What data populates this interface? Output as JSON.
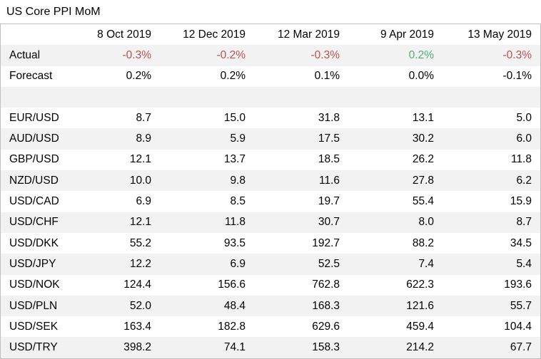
{
  "title": "US Core PPI MoM",
  "dates": [
    "8 Oct 2019",
    "12 Dec 2019",
    "12 Mar 2019",
    "9 Apr 2019",
    "13 May 2019"
  ],
  "actual": {
    "label": "Actual",
    "values": [
      "-0.3%",
      "-0.2%",
      "-0.3%",
      "0.2%",
      "-0.3%"
    ],
    "colors": [
      "neg",
      "neg",
      "neg",
      "pos",
      "neg"
    ]
  },
  "forecast": {
    "label": "Forecast",
    "values": [
      "0.2%",
      "0.2%",
      "0.1%",
      "0.0%",
      "-0.1%"
    ]
  },
  "pairs": [
    {
      "name": "EUR/USD",
      "values": [
        "8.7",
        "15.0",
        "31.8",
        "13.1",
        "5.0"
      ]
    },
    {
      "name": "AUD/USD",
      "values": [
        "8.9",
        "5.9",
        "17.5",
        "30.2",
        "6.0"
      ]
    },
    {
      "name": "GBP/USD",
      "values": [
        "12.1",
        "13.7",
        "18.5",
        "26.2",
        "11.8"
      ]
    },
    {
      "name": "NZD/USD",
      "values": [
        "10.0",
        "9.8",
        "11.6",
        "27.8",
        "6.2"
      ]
    },
    {
      "name": "USD/CAD",
      "values": [
        "6.9",
        "8.5",
        "19.7",
        "55.4",
        "15.9"
      ]
    },
    {
      "name": "USD/CHF",
      "values": [
        "12.1",
        "11.8",
        "30.7",
        "8.0",
        "8.7"
      ]
    },
    {
      "name": "USD/DKK",
      "values": [
        "55.2",
        "93.5",
        "192.7",
        "88.2",
        "34.5"
      ]
    },
    {
      "name": "USD/JPY",
      "values": [
        "12.2",
        "6.9",
        "52.5",
        "7.4",
        "5.4"
      ]
    },
    {
      "name": "USD/NOK",
      "values": [
        "124.4",
        "156.6",
        "762.8",
        "622.3",
        "193.6"
      ]
    },
    {
      "name": "USD/PLN",
      "values": [
        "52.0",
        "48.4",
        "168.3",
        "121.6",
        "55.7"
      ]
    },
    {
      "name": "USD/SEK",
      "values": [
        "163.4",
        "182.8",
        "629.6",
        "459.4",
        "104.4"
      ]
    },
    {
      "name": "USD/TRY",
      "values": [
        "398.2",
        "74.1",
        "158.3",
        "214.2",
        "67.7"
      ]
    }
  ]
}
